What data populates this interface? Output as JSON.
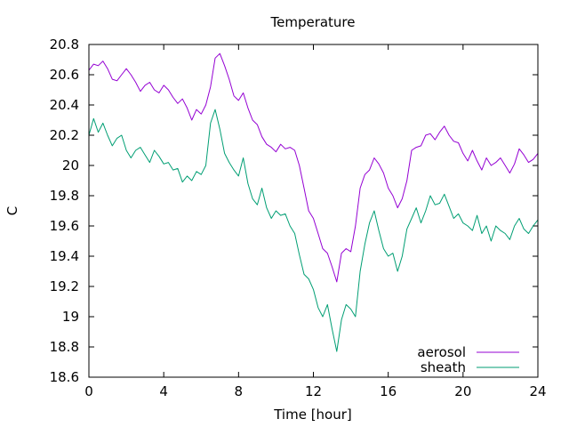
{
  "chart_data": {
    "type": "line",
    "title": "Temperature",
    "xlabel": "Time [hour]",
    "ylabel": "C",
    "xlim": [
      0,
      24
    ],
    "ylim": [
      18.6,
      20.8
    ],
    "xticks": [
      0,
      4,
      8,
      12,
      16,
      20,
      24
    ],
    "xtick_labels": [
      "0",
      "4",
      "8",
      "12",
      "16",
      "20",
      "24"
    ],
    "yticks": [
      18.6,
      18.8,
      19.0,
      19.2,
      19.4,
      19.6,
      19.8,
      20.0,
      20.2,
      20.4,
      20.6,
      20.8
    ],
    "ytick_labels": [
      "18.6",
      "18.8",
      "19",
      "19.2",
      "19.4",
      "19.6",
      "19.8",
      "20",
      "20.2",
      "20.4",
      "20.6",
      "20.8"
    ],
    "grid": false,
    "legend_position": "bottom-right",
    "series": [
      {
        "name": "aerosol",
        "color": "#9400d3",
        "x": [
          0,
          0.25,
          0.5,
          0.75,
          1,
          1.25,
          1.5,
          1.75,
          2,
          2.25,
          2.5,
          2.75,
          3,
          3.25,
          3.5,
          3.75,
          4,
          4.25,
          4.5,
          4.75,
          5,
          5.25,
          5.5,
          5.75,
          6,
          6.25,
          6.5,
          6.75,
          7,
          7.25,
          7.5,
          7.75,
          8,
          8.25,
          8.5,
          8.75,
          9,
          9.25,
          9.5,
          9.75,
          10,
          10.25,
          10.5,
          10.75,
          11,
          11.25,
          11.5,
          11.75,
          12,
          12.25,
          12.5,
          12.75,
          13,
          13.25,
          13.5,
          13.75,
          14,
          14.25,
          14.5,
          14.75,
          15,
          15.25,
          15.5,
          15.75,
          16,
          16.25,
          16.5,
          16.75,
          17,
          17.25,
          17.5,
          17.75,
          18,
          18.25,
          18.5,
          18.75,
          19,
          19.25,
          19.5,
          19.75,
          20,
          20.25,
          20.5,
          20.75,
          21,
          21.25,
          21.5,
          21.75,
          22,
          22.25,
          22.5,
          22.75,
          23,
          23.25,
          23.5,
          23.75,
          24
        ],
        "y": [
          20.63,
          20.67,
          20.66,
          20.69,
          20.64,
          20.57,
          20.56,
          20.6,
          20.64,
          20.6,
          20.55,
          20.49,
          20.53,
          20.55,
          20.5,
          20.48,
          20.53,
          20.5,
          20.45,
          20.41,
          20.44,
          20.38,
          20.3,
          20.37,
          20.34,
          20.4,
          20.52,
          20.71,
          20.74,
          20.66,
          20.57,
          20.46,
          20.43,
          20.48,
          20.38,
          20.3,
          20.27,
          20.19,
          20.14,
          20.12,
          20.09,
          20.14,
          20.11,
          20.12,
          20.1,
          20.0,
          19.85,
          19.7,
          19.65,
          19.55,
          19.45,
          19.42,
          19.33,
          19.23,
          19.42,
          19.45,
          19.43,
          19.6,
          19.85,
          19.94,
          19.97,
          20.05,
          20.01,
          19.95,
          19.85,
          19.8,
          19.72,
          19.78,
          19.9,
          20.1,
          20.12,
          20.13,
          20.2,
          20.21,
          20.17,
          20.22,
          20.26,
          20.2,
          20.16,
          20.15,
          20.08,
          20.03,
          20.1,
          20.03,
          19.97,
          20.05,
          20.0,
          20.02,
          20.05,
          20.0,
          19.95,
          20.01,
          20.11,
          20.07,
          20.02,
          20.04,
          20.08
        ]
      },
      {
        "name": "sheath",
        "color": "#009e73",
        "x": [
          0,
          0.25,
          0.5,
          0.75,
          1,
          1.25,
          1.5,
          1.75,
          2,
          2.25,
          2.5,
          2.75,
          3,
          3.25,
          3.5,
          3.75,
          4,
          4.25,
          4.5,
          4.75,
          5,
          5.25,
          5.5,
          5.75,
          6,
          6.25,
          6.5,
          6.75,
          7,
          7.25,
          7.5,
          7.75,
          8,
          8.25,
          8.5,
          8.75,
          9,
          9.25,
          9.5,
          9.75,
          10,
          10.25,
          10.5,
          10.75,
          11,
          11.25,
          11.5,
          11.75,
          12,
          12.25,
          12.5,
          12.75,
          13,
          13.25,
          13.5,
          13.75,
          14,
          14.25,
          14.5,
          14.75,
          15,
          15.25,
          15.5,
          15.75,
          16,
          16.25,
          16.5,
          16.75,
          17,
          17.25,
          17.5,
          17.75,
          18,
          18.25,
          18.5,
          18.75,
          19,
          19.25,
          19.5,
          19.75,
          20,
          20.25,
          20.5,
          20.75,
          21,
          21.25,
          21.5,
          21.75,
          22,
          22.25,
          22.5,
          22.75,
          23,
          23.25,
          23.5,
          23.75,
          24
        ],
        "y": [
          20.2,
          20.31,
          20.22,
          20.28,
          20.2,
          20.13,
          20.18,
          20.2,
          20.1,
          20.05,
          20.1,
          20.12,
          20.07,
          20.02,
          20.1,
          20.06,
          20.01,
          20.02,
          19.97,
          19.98,
          19.89,
          19.93,
          19.9,
          19.96,
          19.94,
          20.0,
          20.28,
          20.37,
          20.24,
          20.08,
          20.02,
          19.97,
          19.93,
          20.05,
          19.88,
          19.78,
          19.74,
          19.85,
          19.72,
          19.65,
          19.7,
          19.67,
          19.68,
          19.6,
          19.55,
          19.41,
          19.28,
          19.25,
          19.18,
          19.06,
          19.0,
          19.08,
          18.92,
          18.77,
          18.98,
          19.08,
          19.05,
          19.0,
          19.3,
          19.48,
          19.62,
          19.7,
          19.57,
          19.45,
          19.4,
          19.42,
          19.3,
          19.4,
          19.58,
          19.65,
          19.72,
          19.62,
          19.7,
          19.8,
          19.74,
          19.75,
          19.81,
          19.73,
          19.65,
          19.68,
          19.62,
          19.6,
          19.57,
          19.67,
          19.55,
          19.6,
          19.5,
          19.6,
          19.57,
          19.55,
          19.51,
          19.6,
          19.65,
          19.58,
          19.55,
          19.6,
          19.64
        ]
      }
    ]
  }
}
